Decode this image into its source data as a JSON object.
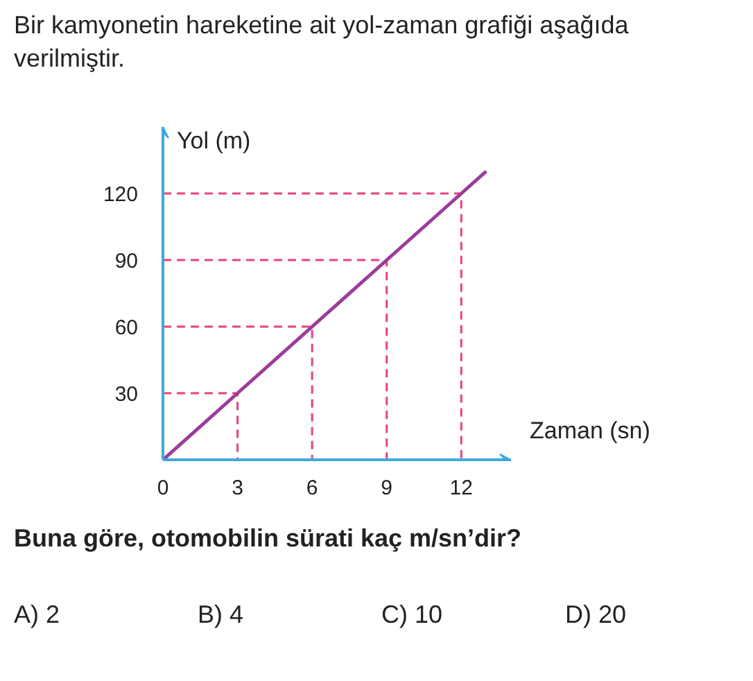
{
  "chart_data": {
    "type": "line",
    "title": "Bir kamyonetin hareketine ait yol-zaman grafiği aşağıda verilmiştir.",
    "xlabel": "Zaman (sn)",
    "ylabel": "Yol (m)",
    "x": [
      0,
      3,
      6,
      9,
      12,
      13
    ],
    "series": [
      {
        "color": "#9b3c9b",
        "values": [
          0,
          30,
          60,
          90,
          120,
          130
        ]
      },
      {
        "color": "#e8417d",
        "line_style": "dashed",
        "x": [
          0,
          3,
          3
        ],
        "values": [
          30,
          30,
          0
        ]
      },
      {
        "color": "#e8417d",
        "line_style": "dashed",
        "x": [
          0,
          6,
          6
        ],
        "values": [
          60,
          60,
          0
        ]
      },
      {
        "color": "#e8417d",
        "line_style": "dashed",
        "x": [
          0,
          9,
          9
        ],
        "values": [
          90,
          90,
          0
        ]
      },
      {
        "color": "#e8417d",
        "line_style": "dashed",
        "x": [
          0,
          12,
          12
        ],
        "values": [
          120,
          120,
          0
        ]
      }
    ],
    "xlim": [
      0,
      14
    ],
    "ylim": [
      0,
      150
    ],
    "xticks": [
      0,
      3,
      6,
      9,
      12
    ],
    "yticks": [
      30,
      60,
      90,
      120
    ],
    "grid": false,
    "line_style": "solid",
    "annotations": [
      "Buna göre, otomobilin sürati kaç m/sn’dir?",
      "A) 2",
      "B) 4",
      "C) 10",
      "D) 20"
    ]
  }
}
